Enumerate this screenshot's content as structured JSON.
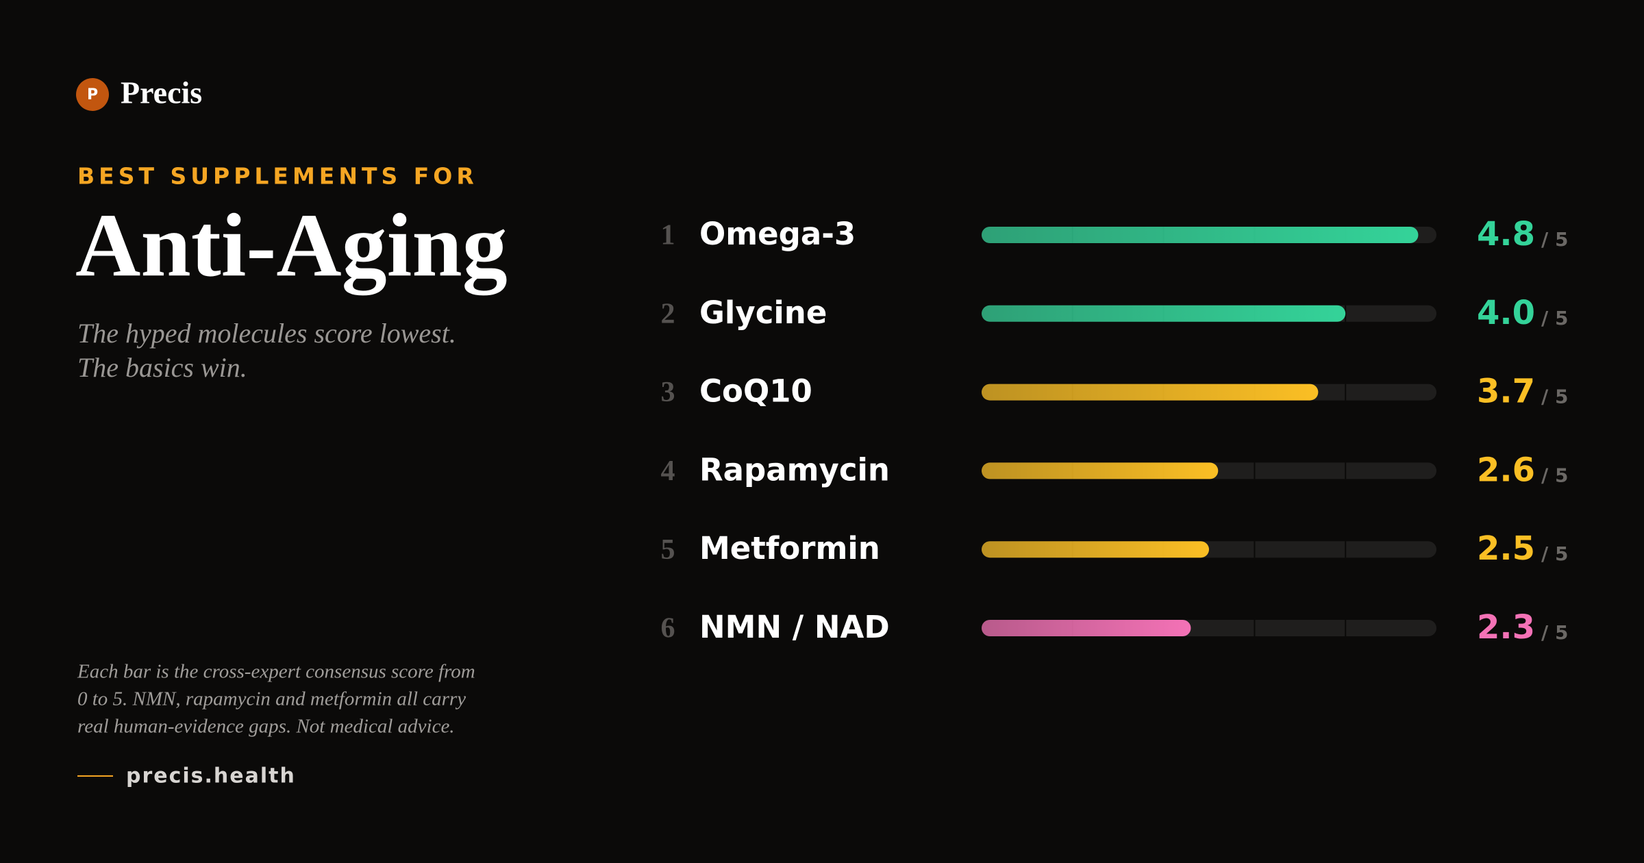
{
  "brand": {
    "logo_letter": "P",
    "name": "Precis"
  },
  "footer": {
    "note": [
      "Each bar is the cross-expert consensus score from",
      "0 to 5. NMN, rapamycin and metformin all carry",
      "real human-evidence gaps. Not medical advice."
    ],
    "site": "precis.health"
  },
  "chart_data": {
    "type": "bar",
    "orientation": "horizontal",
    "eyebrow": "BEST SUPPLEMENTS FOR",
    "title": "Anti-Aging",
    "subtitle": [
      "The hyped molecules score lowest.",
      "The basics win."
    ],
    "ranks": [
      1,
      2,
      3,
      4,
      5,
      6
    ],
    "categories": [
      "Omega-3",
      "Glycine",
      "CoQ10",
      "Rapamycin",
      "Metformin",
      "NMN / NAD"
    ],
    "values": [
      4.8,
      4.0,
      3.7,
      2.6,
      2.5,
      2.3
    ],
    "value_labels": [
      "4.8",
      "4.0",
      "3.7",
      "2.6",
      "2.5",
      "2.3"
    ],
    "value_suffix": "/ 5",
    "colors": [
      "#34d399",
      "#34d399",
      "#fbbf24",
      "#fbbf24",
      "#fbbf24",
      "#f472b6"
    ],
    "xlim": [
      0,
      5
    ],
    "xticks": [
      1,
      2,
      3,
      4
    ],
    "grid": true
  }
}
